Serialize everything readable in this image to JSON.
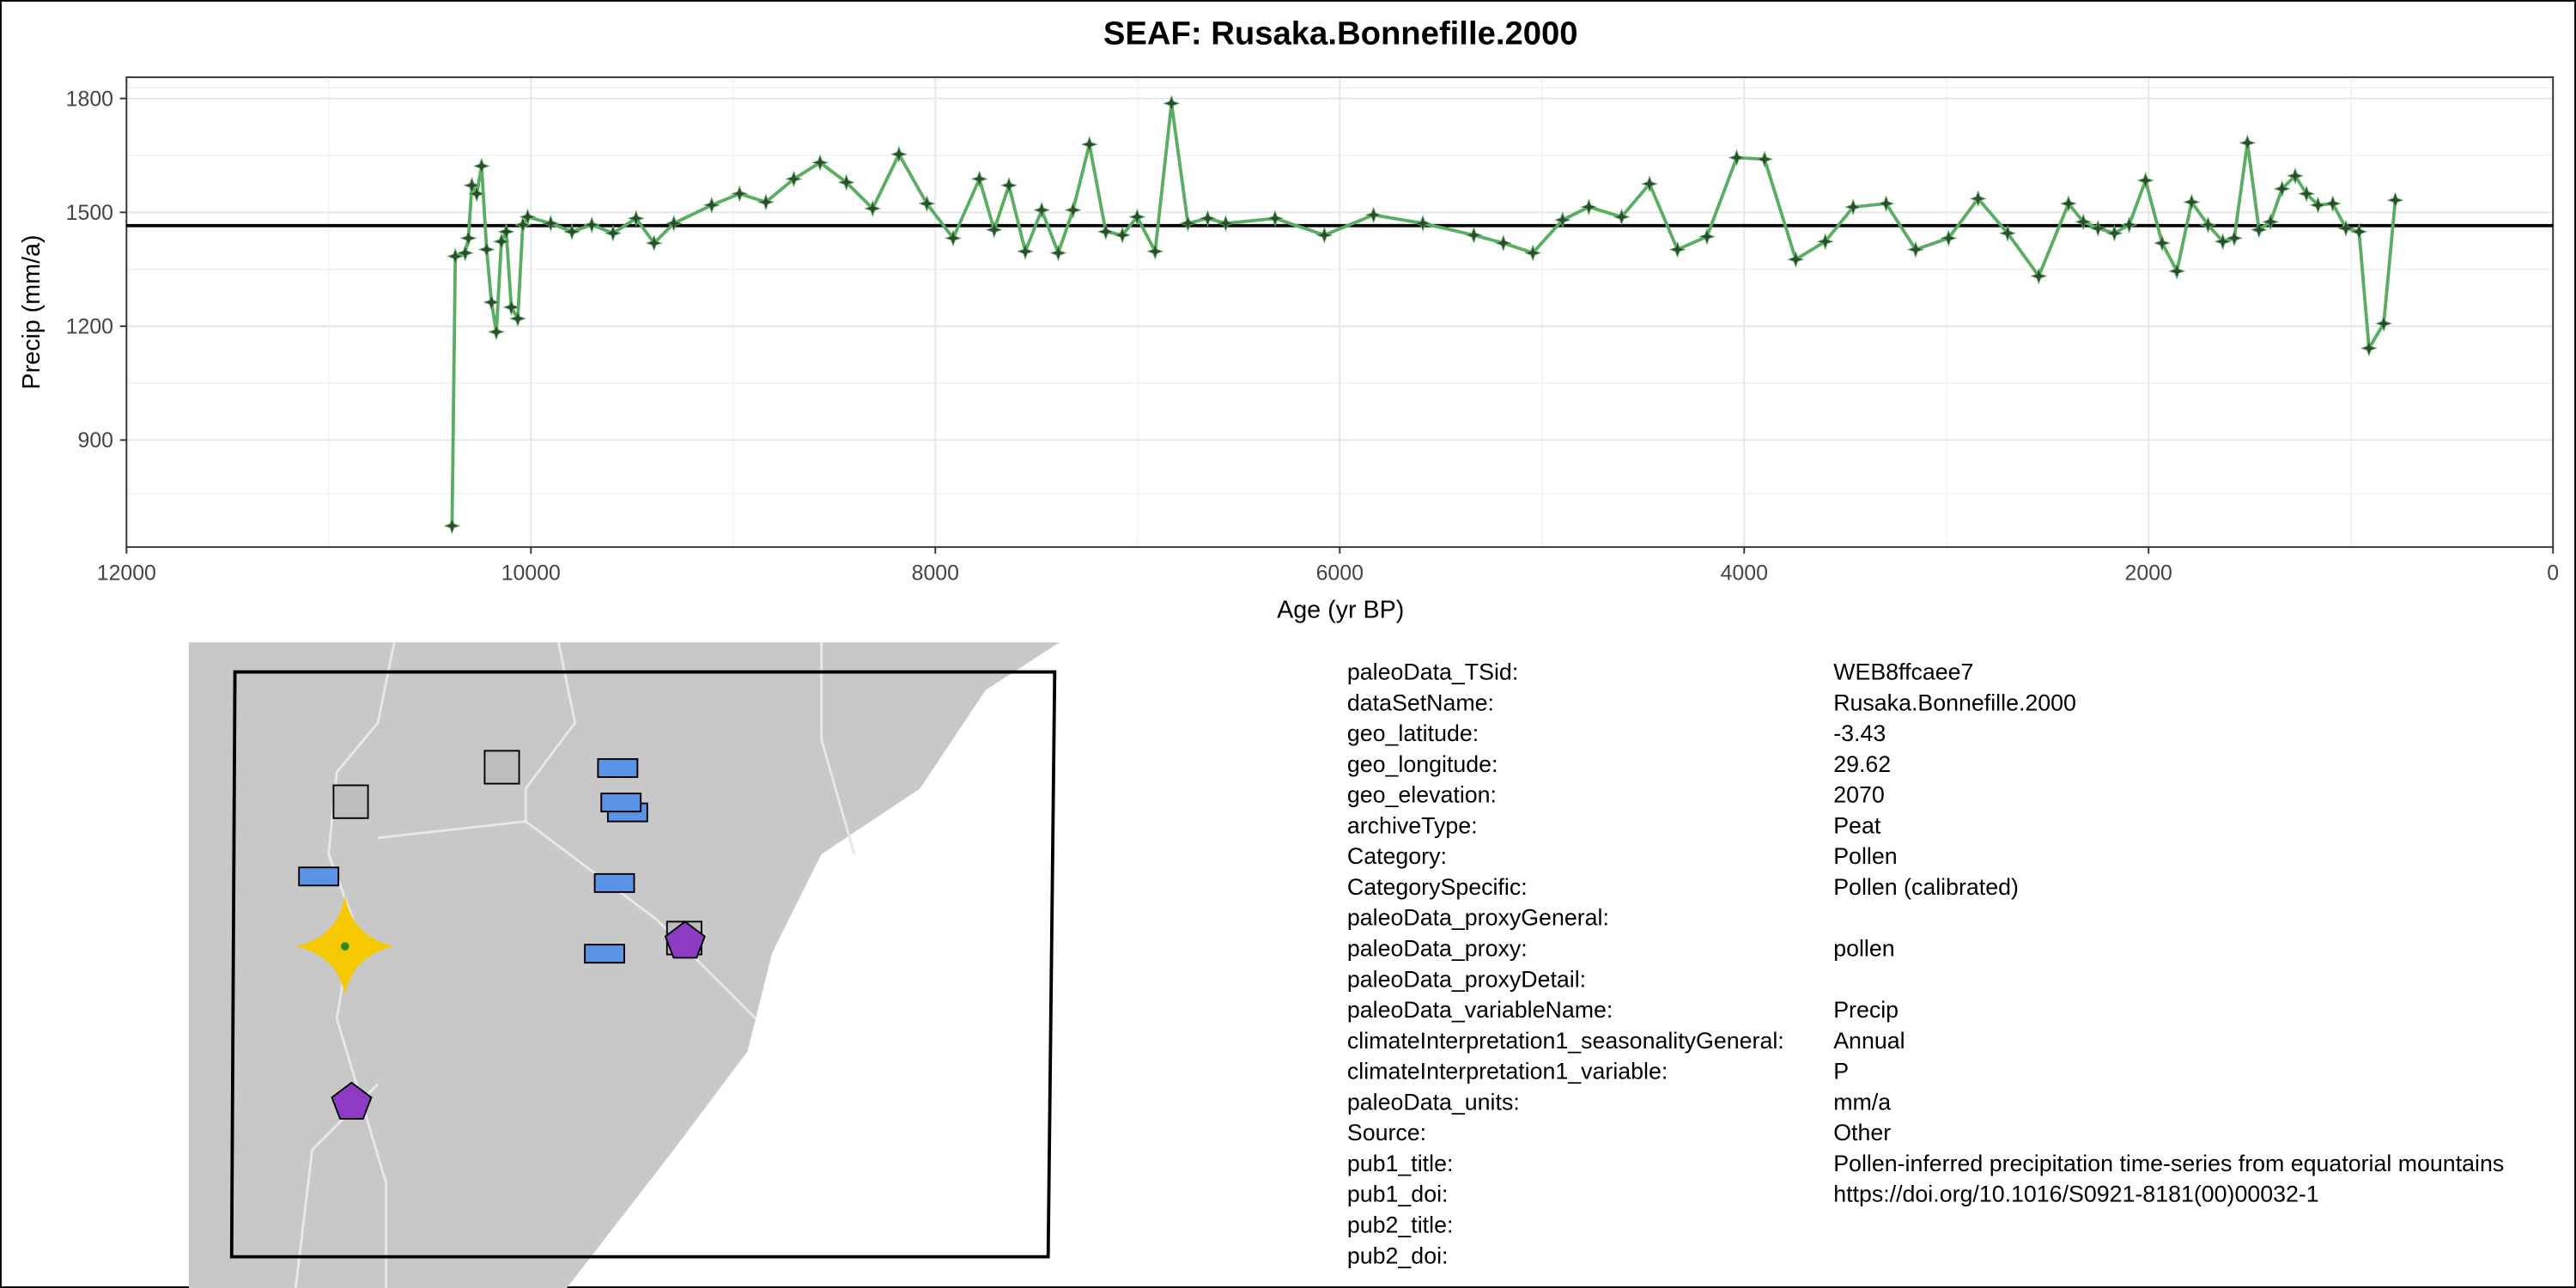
{
  "chart_data": {
    "type": "line",
    "title": "SEAF: Rusaka.Bonnefille.2000",
    "x_label": "Age (yr BP)",
    "y_label": "Precip (mm/a)",
    "xlim": [
      12000,
      0
    ],
    "xticks": [
      12000,
      10000,
      8000,
      6000,
      4000,
      2000,
      0
    ],
    "ylim": [
      618,
      1856
    ],
    "yticks": [
      900,
      1200,
      1500,
      1800
    ],
    "grid": true,
    "mean_line": 1465,
    "series": [
      {
        "color": "#5aae61",
        "x": [
          10390,
          10374,
          10325,
          10309,
          10292,
          10268,
          10244,
          10219,
          10195,
          10171,
          10146,
          10122,
          10097,
          10065,
          10040,
          10016,
          9902,
          9797,
          9699,
          9594,
          9480,
          9391,
          9293,
          9106,
          8968,
          8838,
          8700,
          8570,
          8440,
          8310,
          8180,
          8042,
          7912,
          7782,
          7709,
          7636,
          7555,
          7474,
          7392,
          7319,
          7238,
          7157,
          7075,
          7002,
          6913,
          6832,
          6751,
          6653,
          6564,
          6320,
          6076,
          5833,
          5589,
          5337,
          5191,
          5045,
          4898,
          4768,
          4606,
          4468,
          4330,
          4184,
          4037,
          3899,
          3745,
          3599,
          3461,
          3298,
          3152,
          2989,
          2843,
          2697,
          2543,
          2396,
          2323,
          2250,
          2169,
          2096,
          2015,
          1933,
          1860,
          1787,
          1706,
          1633,
          1576,
          1511,
          1454,
          1397,
          1340,
          1275,
          1219,
          1162,
          1089,
          1024,
          959,
          910,
          837,
          780
        ],
        "values": [
          674,
          1384,
          1393,
          1432,
          1571,
          1549,
          1622,
          1402,
          1263,
          1185,
          1423,
          1449,
          1250,
          1220,
          1467,
          1488,
          1471,
          1449,
          1467,
          1445,
          1484,
          1419,
          1471,
          1519,
          1549,
          1527,
          1588,
          1631,
          1579,
          1510,
          1653,
          1523,
          1432,
          1588,
          1454,
          1571,
          1397,
          1506,
          1393,
          1506,
          1679,
          1449,
          1440,
          1488,
          1397,
          1787,
          1471,
          1484,
          1471,
          1484,
          1440,
          1493,
          1471,
          1440,
          1419,
          1393,
          1480,
          1514,
          1488,
          1575,
          1402,
          1436,
          1644,
          1640,
          1376,
          1423,
          1514,
          1523,
          1402,
          1432,
          1536,
          1445,
          1332,
          1523,
          1475,
          1458,
          1445,
          1467,
          1584,
          1419,
          1345,
          1527,
          1467,
          1423,
          1432,
          1683,
          1454,
          1475,
          1562,
          1596,
          1549,
          1519,
          1523,
          1458,
          1449,
          1142,
          1207,
          1532
        ]
      }
    ]
  },
  "metadata": {
    "rows": [
      [
        "paleoData_TSid:",
        "WEB8ffcaee7"
      ],
      [
        "dataSetName:",
        "Rusaka.Bonnefille.2000"
      ],
      [
        "geo_latitude:",
        "-3.43"
      ],
      [
        "geo_longitude:",
        "29.62"
      ],
      [
        "geo_elevation:",
        "2070"
      ],
      [
        "archiveType:",
        "Peat"
      ],
      [
        "Category:",
        "Pollen"
      ],
      [
        "CategorySpecific:",
        "Pollen (calibrated)"
      ],
      [
        "paleoData_proxyGeneral:"
      ],
      [
        "paleoData_proxy:",
        "pollen"
      ],
      [
        "paleoData_proxyDetail:"
      ],
      [
        "paleoData_variableName:",
        "Precip"
      ],
      [
        "climateInterpretation1_seasonalityGeneral:",
        "Annual"
      ],
      [
        "climateInterpretation1_variable:",
        "P"
      ],
      [
        "paleoData_units:",
        "mm/a"
      ],
      [
        "Source:",
        "Other"
      ],
      [
        "pub1_title:",
        "Pollen-inferred precipitation time-series from equatorial mountains"
      ],
      [
        "pub1_doi:",
        "https://doi.org/10.1016/S0921-8181(00)00032-1"
      ],
      [
        "pub2_title:"
      ],
      [
        "pub2_doi:"
      ]
    ]
  }
}
